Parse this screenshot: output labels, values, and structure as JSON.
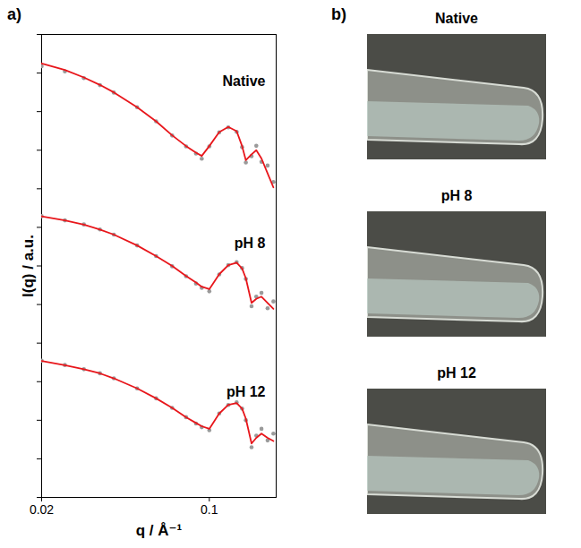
{
  "chart_data": {
    "type": "scatter",
    "title": "a)",
    "x_label": "q / Å⁻¹",
    "y_label": "I(q) / a.u.",
    "log": true,
    "grid": false,
    "tick_labels": "x",
    "xlim": [
      0.02,
      0.19
    ],
    "xticks": [
      0.02,
      0.1
    ],
    "ylim": [
      1e-06,
      1000000.0
    ],
    "yticks": [
      1e-06,
      1e-05,
      0.0001,
      0.001,
      0.01,
      0.1,
      1,
      10,
      100,
      1000,
      10000,
      100000,
      1000000
    ],
    "x": [
      0.02,
      0.025,
      0.03,
      0.035,
      0.04,
      0.05,
      0.06,
      0.07,
      0.08,
      0.088,
      0.093,
      0.1,
      0.11,
      0.12,
      0.13,
      0.137,
      0.142,
      0.15,
      0.157,
      0.165,
      0.175,
      0.185
    ],
    "series": [
      {
        "name": "Native",
        "type": "scatter",
        "marker": "circle",
        "color": "#9a9a9a",
        "values": [
          150000,
          110000,
          74000,
          48500,
          31200,
          13000,
          5600,
          2400,
          1250,
          820,
          600,
          1250,
          2900,
          3900,
          3000,
          1200,
          480,
          700,
          1300,
          500,
          400,
          150
        ]
      },
      {
        "name": "Native",
        "type": "line",
        "line_style": "solid",
        "color": "#e8161b",
        "values": [
          178000,
          120000,
          77000,
          49300,
          31600,
          13000,
          5600,
          2430,
          1280,
          860,
          710,
          1280,
          2960,
          4000,
          3110,
          1280,
          550,
          780,
          1000,
          610,
          250,
          109
        ]
      },
      {
        "name": "pH 8",
        "type": "scatter",
        "marker": "circle",
        "color": "#9a9a9a",
        "values": [
          19.5,
          15.2,
          11.9,
          8.8,
          6.5,
          3.4,
          1.8,
          0.98,
          0.54,
          0.35,
          0.27,
          0.22,
          0.6,
          1.05,
          1.25,
          0.88,
          0.46,
          0.09,
          0.16,
          0.2,
          0.08,
          0.12
        ]
      },
      {
        "name": "pH 8",
        "type": "line",
        "line_style": "solid",
        "color": "#e8161b",
        "values": [
          19.3,
          15.1,
          11.8,
          8.8,
          6.5,
          3.4,
          1.8,
          1.0,
          0.55,
          0.37,
          0.29,
          0.25,
          0.61,
          1.05,
          1.22,
          0.86,
          0.48,
          0.11,
          0.14,
          0.16,
          0.11,
          0.077
        ]
      },
      {
        "name": "pH 12",
        "type": "scatter",
        "marker": "circle",
        "color": "#9a9a9a",
        "values": [
          0.0035,
          0.0027,
          0.0021,
          0.00165,
          0.00122,
          0.00067,
          0.00037,
          0.00021,
          0.00012,
          8.2e-05,
          6.6e-05,
          5.5e-05,
          0.00015,
          0.00025,
          0.00029,
          0.0002,
          0.0001,
          2e-05,
          4e-05,
          6e-05,
          3e-05,
          4.5e-05
        ]
      },
      {
        "name": "pH 12",
        "type": "line",
        "line_style": "solid",
        "color": "#e8161b",
        "values": [
          0.00344,
          0.00268,
          0.0021,
          0.00164,
          0.00122,
          0.00067,
          0.00037,
          0.00021,
          0.00012,
          8.5e-05,
          7e-05,
          6e-05,
          0.00015,
          0.00025,
          0.00028,
          0.0002,
          0.00011,
          2.5e-05,
          3.5e-05,
          4.5e-05,
          3.5e-05,
          2.9e-05
        ]
      }
    ]
  },
  "photo_panel": {
    "title": "b)",
    "photos": [
      "Native",
      "pH 8",
      "pH 12"
    ]
  }
}
